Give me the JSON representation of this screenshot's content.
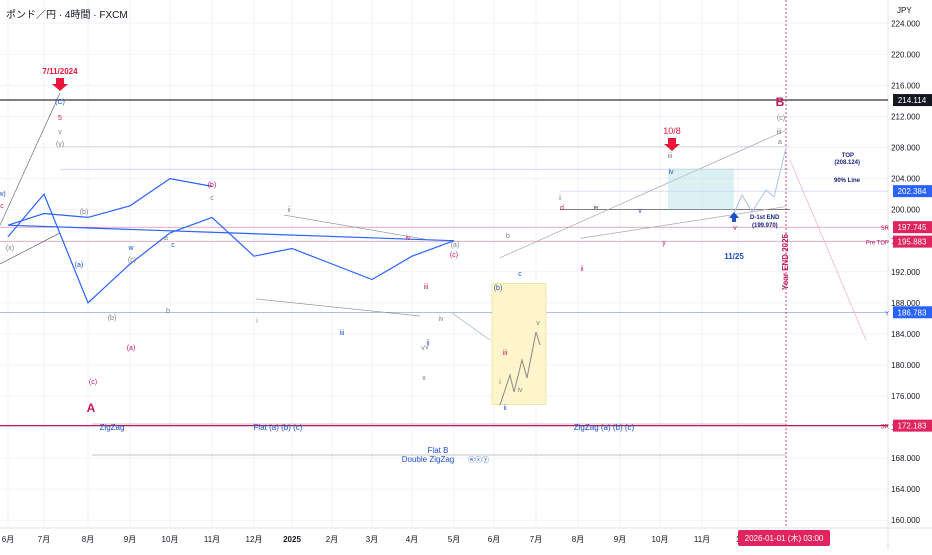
{
  "header": {
    "symbol": "ポンド／円 · 4時間 · FXCM",
    "currency": "JPY"
  },
  "colors": {
    "up": "#2962ff",
    "down": "#e91e63",
    "red": "#e8173c",
    "blue": "#1e4fc7",
    "navy": "#1a237e",
    "pink": "#c2185b",
    "gray": "#808080",
    "box_blue": "#b2dfe6",
    "box_yellow": "#fff5cc"
  },
  "chart_data": {
    "type": "line",
    "title": "",
    "xlabel": "",
    "ylabel": "",
    "ylim": [
      159,
      227
    ],
    "y_ticks": [
      "224.000",
      "220.000",
      "216.000",
      "212.000",
      "208.000",
      "204.000",
      "200.000",
      "196.000",
      "192.000",
      "188.000",
      "184.000",
      "180.000",
      "176.000",
      "172.000",
      "168.000",
      "164.000",
      "160.000"
    ],
    "x_ticks": [
      "6月",
      "7月",
      "8月",
      "9月",
      "10月",
      "11月",
      "12月",
      "2025",
      "2月",
      "3月",
      "4月",
      "5月",
      "6月",
      "7月",
      "8月",
      "9月",
      "10月",
      "11月",
      "1"
    ],
    "grid": true,
    "series": [
      {
        "values_note": "",
        "x": [
          "6月",
          "7月",
          "8月",
          "9月",
          "10月",
          "11月",
          "12月",
          "2025",
          "2月",
          "3月",
          "4月",
          "5月",
          "6月",
          "7月",
          "8月",
          "9月",
          "10月",
          "11月"
        ],
        "values": [
          196.5,
          202,
          188,
          193,
          197,
          199,
          194,
          195,
          193,
          191,
          194,
          196,
          198,
          199.5,
          199,
          200.5,
          204,
          203
        ]
      }
    ],
    "price_labels": [
      {
        "label": "214.114",
        "value": 214.114,
        "kind": "black"
      },
      {
        "label": "202.384",
        "value": 202.384,
        "kind": "blue"
      },
      {
        "label": "197.745",
        "value": 197.745,
        "kind": "pink",
        "tag": "SR"
      },
      {
        "label": "195.883",
        "value": 195.883,
        "kind": "pink",
        "tag": "Pre TOP"
      },
      {
        "label": "186.783",
        "value": 186.783,
        "kind": "blue",
        "tag": "Y"
      },
      {
        "label": "172.183",
        "value": 172.183,
        "kind": "pink",
        "tag": "SR"
      }
    ],
    "annotations": {
      "date_top": "7/11/2024",
      "date_108": "10/8",
      "date_1125": "11/25",
      "big_a": "A",
      "big_b": "B",
      "year_end": "Year END 2025",
      "top_label": "TOP",
      "top_value": "(208.124)",
      "line90": "90% Line",
      "d1_end": "D-1st END",
      "d1_value": "(199.970)",
      "zigzag1": "ZigZag",
      "flat": "Flat (a) (b) (c)",
      "zigzag2": "ZigZag (a) (b) (c)",
      "flat_b": "Flat B",
      "double_zz": "Double ZigZag",
      "wxy": "ⓦⓧⓨ",
      "time_bubble": "2026-01-01 (木)   03:00",
      "wave_labels": [
        "(C)",
        "5",
        "v",
        "(y)",
        "w)",
        "c",
        "(x)",
        "(b)",
        "(a)",
        "(c)",
        "a",
        "b",
        "c",
        "(a)",
        "(b)",
        "(c)",
        "w",
        "(b)",
        "c",
        "ii",
        "iii",
        "iv",
        "v",
        "(a)",
        "(b)",
        "(c)",
        "x",
        "i",
        "ii",
        "iii",
        "iv",
        "v",
        "i",
        "ii",
        "iii",
        "iv",
        "v",
        "y",
        "(c)",
        "iii",
        "iv",
        "v",
        "a",
        "b",
        "c",
        "d",
        "e",
        "i",
        "ii",
        "iii",
        "iv",
        "v"
      ]
    }
  }
}
